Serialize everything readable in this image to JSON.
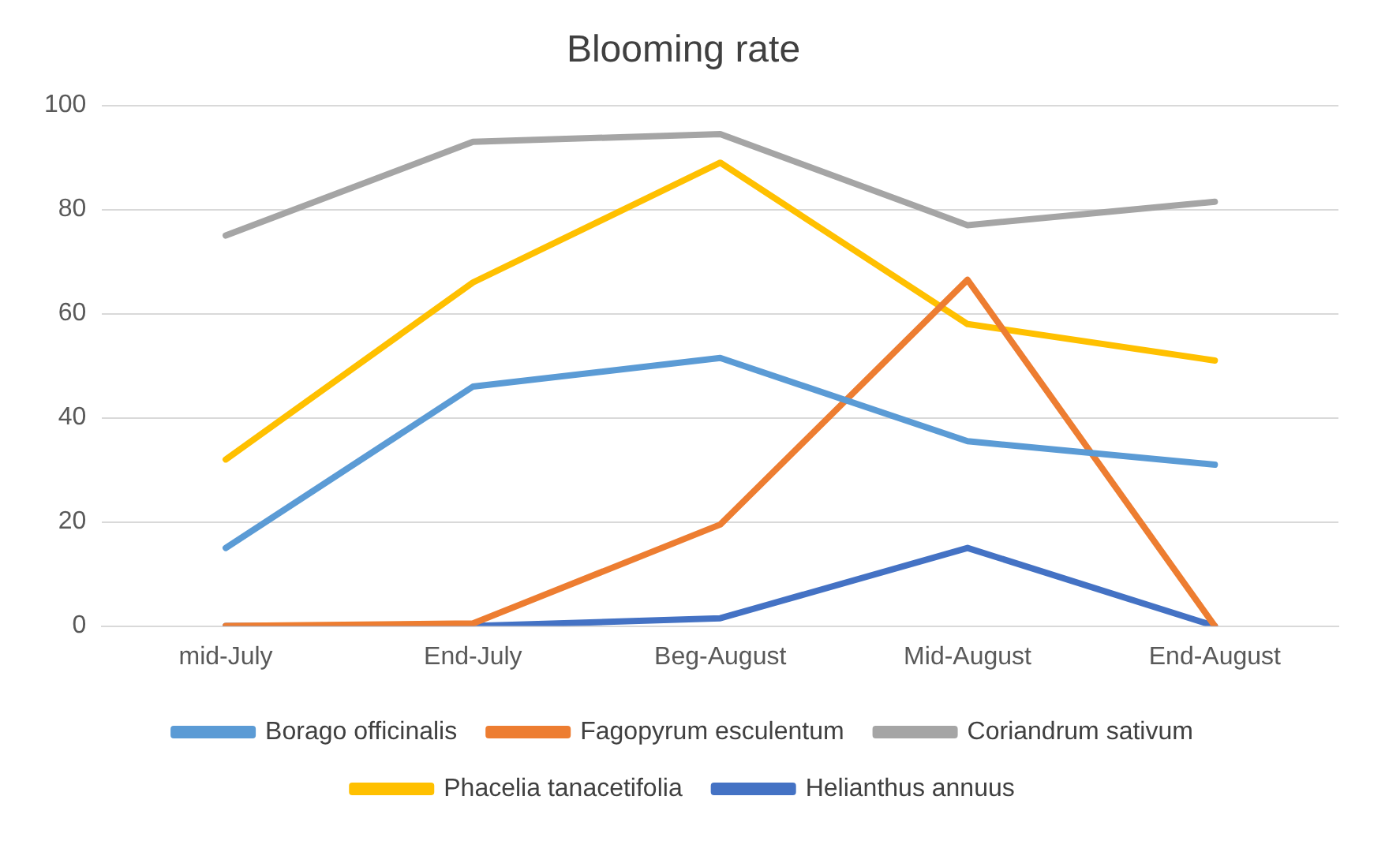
{
  "chart_data": {
    "type": "line",
    "title": "Blooming rate",
    "categories": [
      "mid-July",
      "End-July",
      "Beg-August",
      "Mid-August",
      "End-August"
    ],
    "series": [
      {
        "name": "Borago officinalis",
        "color": "#5b9bd5",
        "values": [
          15,
          46,
          51.5,
          35.5,
          31
        ]
      },
      {
        "name": "Fagopyrum esculentum",
        "color": "#ed7d31",
        "values": [
          0,
          0.5,
          19.5,
          66.5,
          0
        ]
      },
      {
        "name": "Coriandrum sativum",
        "color": "#a5a5a5",
        "values": [
          75,
          93,
          94.5,
          77,
          81.5
        ]
      },
      {
        "name": "Phacelia tanacetifolia",
        "color": "#ffc000",
        "values": [
          32,
          66,
          89,
          58,
          51
        ]
      },
      {
        "name": "Helianthus annuus",
        "color": "#4472c4",
        "values": [
          0,
          0,
          1.5,
          15,
          0
        ]
      }
    ],
    "ylim": [
      0,
      100
    ],
    "yticks": [
      0,
      20,
      40,
      60,
      80,
      100
    ],
    "grid": "y",
    "legend": "bottom",
    "marker": "none",
    "line_style": "solid"
  }
}
